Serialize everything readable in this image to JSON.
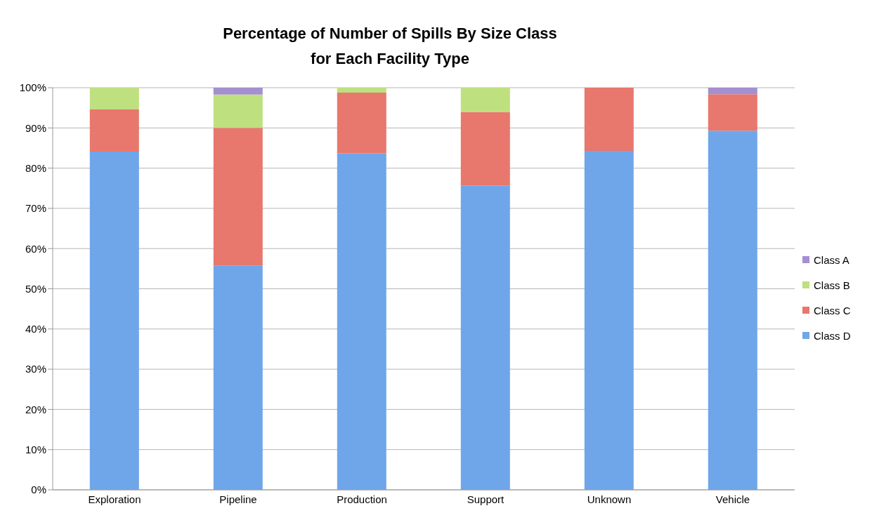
{
  "chart_data": {
    "type": "bar",
    "title": "Percentage of Number of Spills By Size Class\nfor Each Facility Type",
    "categories": [
      "Exploration",
      "Pipeline",
      "Production",
      "Support",
      "Unknown",
      "Vehicle"
    ],
    "series": [
      {
        "name": "Class D",
        "color": "#6fa6ea",
        "values": [
          84.1,
          55.7,
          83.7,
          75.7,
          84.3,
          89.3
        ]
      },
      {
        "name": "Class C",
        "color": "#e8776d",
        "values": [
          10.5,
          34.3,
          15.1,
          18.3,
          15.7,
          9.1
        ]
      },
      {
        "name": "Class B",
        "color": "#bfe07e",
        "values": [
          5.4,
          8.3,
          1.2,
          6.0,
          0,
          0
        ]
      },
      {
        "name": "Class A",
        "color": "#a48fd0",
        "values": [
          0,
          1.7,
          0,
          0,
          0,
          1.6
        ]
      }
    ],
    "stacked": true,
    "ylim": [
      0,
      100
    ],
    "yticks": [
      {
        "value": 0,
        "label": "0%"
      },
      {
        "value": 10,
        "label": "10%"
      },
      {
        "value": 20,
        "label": "20%"
      },
      {
        "value": 30,
        "label": "30%"
      },
      {
        "value": 40,
        "label": "40%"
      },
      {
        "value": 50,
        "label": "50%"
      },
      {
        "value": 60,
        "label": "60%"
      },
      {
        "value": 70,
        "label": "70%"
      },
      {
        "value": 80,
        "label": "80%"
      },
      {
        "value": 90,
        "label": "90%"
      },
      {
        "value": 100,
        "label": "100%"
      }
    ],
    "grid": "y",
    "legend": "right"
  }
}
